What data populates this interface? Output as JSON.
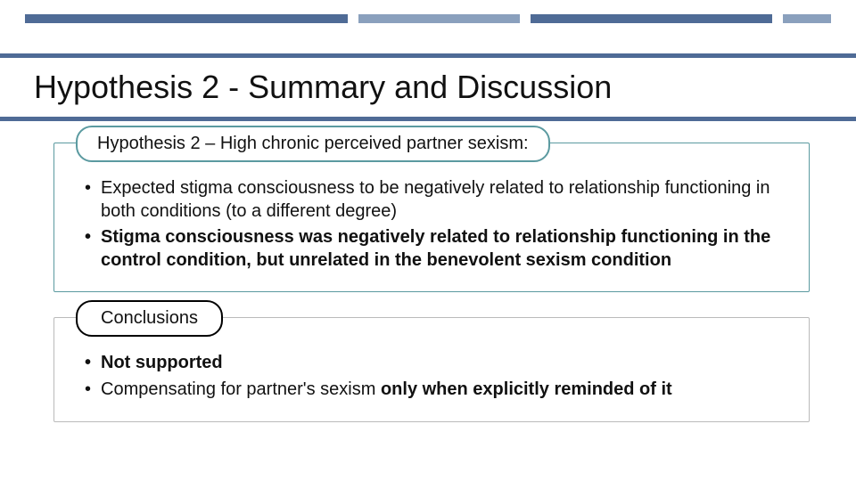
{
  "colors": {
    "band_border": "#4f6b96",
    "accent_light": "#8aa0bd",
    "pill_teal": "#5b9aa0",
    "pill_black": "#000000",
    "text": "#111111",
    "bg": "#ffffff"
  },
  "title": "Hypothesis 2 - Summary and Discussion",
  "block1": {
    "header": "Hypothesis 2 – High chronic perceived partner sexism:",
    "bullets": {
      "b1_plain": "Expected stigma consciousness to be negatively related to relationship functioning in both conditions (to a different degree)",
      "b2_bold": "Stigma consciousness was negatively related to relationship functioning in the control condition, but unrelated in the benevolent sexism condition"
    }
  },
  "block2": {
    "header": "Conclusions",
    "bullets": {
      "b1_bold": "Not supported",
      "b2_prefix": "Compensating for partner's sexism ",
      "b2_bold_suffix": "only when explicitly reminded of it"
    }
  }
}
